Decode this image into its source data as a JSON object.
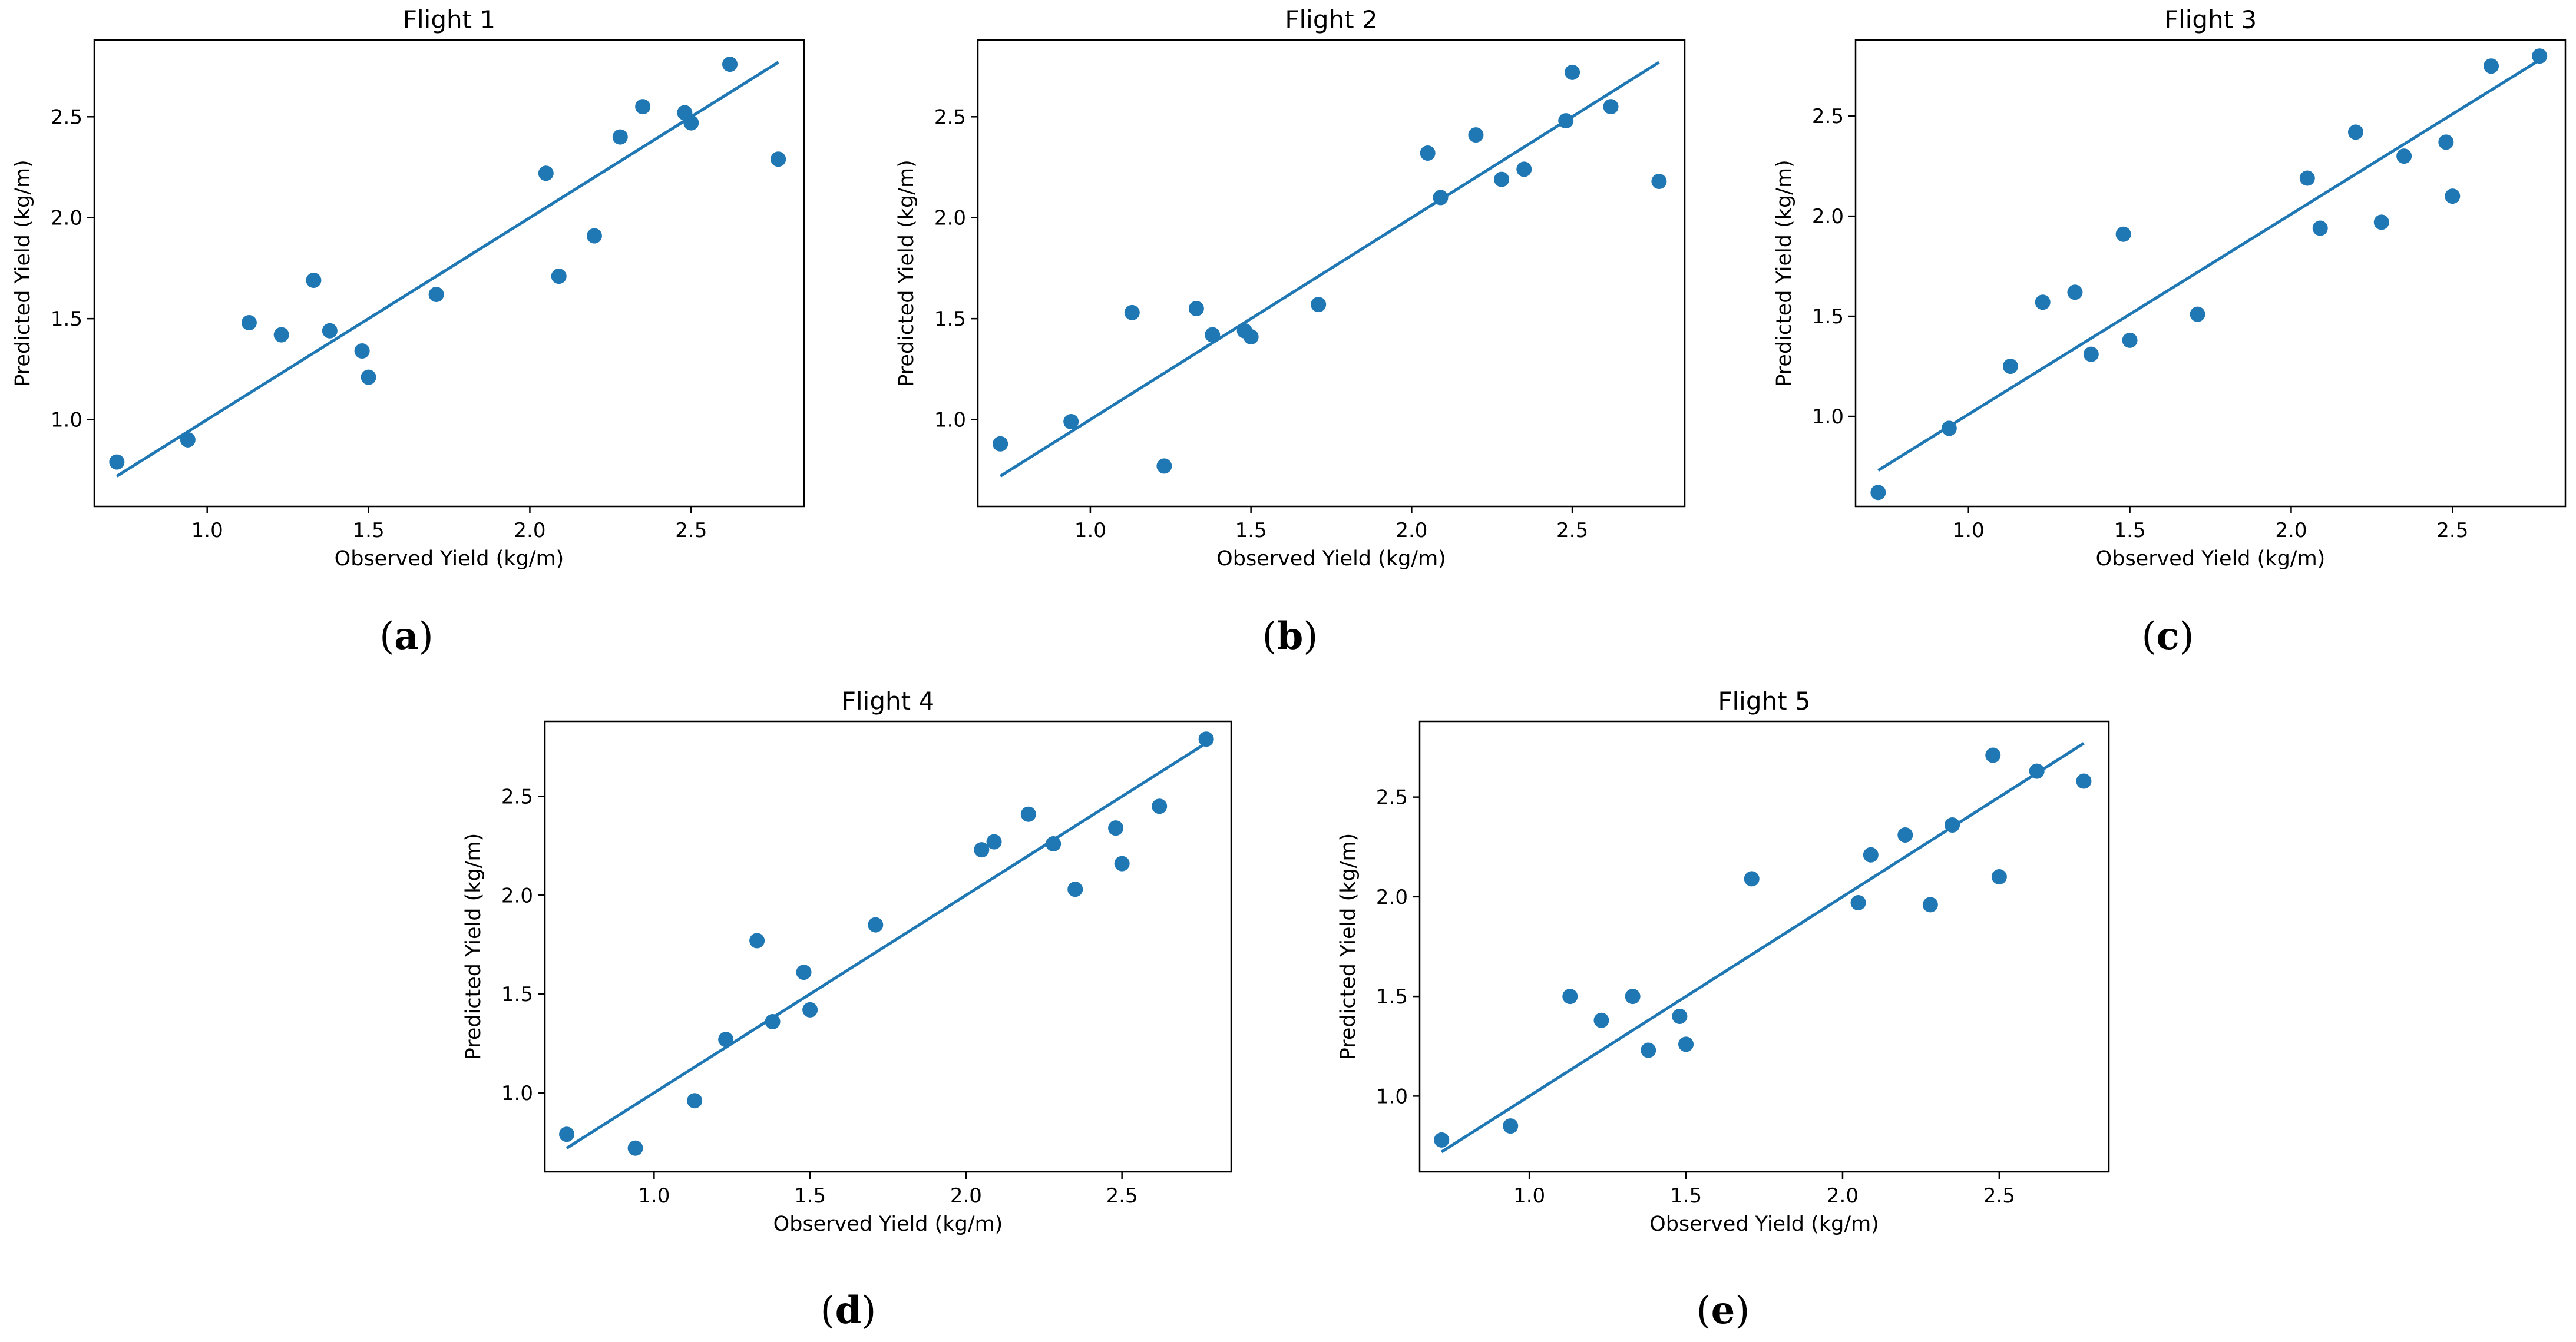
{
  "figure": {
    "colors": {
      "marker": "#1f77b4",
      "line": "#1f77b4",
      "axes": "#000000"
    }
  },
  "chart_data": [
    {
      "type": "scatter",
      "title": "Flight 1",
      "caption": "(a)",
      "caption_letter": "a",
      "xlabel": "Observed Yield (kg/m)",
      "ylabel": "Predicted Yield (kg/m)",
      "xlim": [
        0.65,
        2.85
      ],
      "ylim": [
        0.57,
        2.88
      ],
      "xticks": [
        1.0,
        1.5,
        2.0,
        2.5
      ],
      "xtick_labels": [
        "1.0",
        "1.5",
        "2.0",
        "2.5"
      ],
      "yticks": [
        1.0,
        1.5,
        2.0,
        2.5
      ],
      "ytick_labels": [
        "1.0",
        "1.5",
        "2.0",
        "2.5"
      ],
      "x": [
        0.72,
        0.94,
        1.13,
        1.23,
        1.33,
        1.38,
        1.48,
        1.5,
        1.71,
        2.05,
        2.09,
        2.2,
        2.28,
        2.35,
        2.48,
        2.5,
        2.62,
        2.77
      ],
      "y": [
        0.79,
        0.9,
        1.48,
        1.42,
        1.69,
        1.44,
        1.34,
        1.21,
        1.62,
        2.22,
        1.71,
        1.91,
        2.4,
        2.55,
        2.52,
        2.47,
        2.76,
        2.29
      ],
      "fit_line": {
        "x": [
          0.72,
          2.77
        ],
        "y": [
          0.72,
          2.77
        ]
      }
    },
    {
      "type": "scatter",
      "title": "Flight 2",
      "caption": "(b)",
      "caption_letter": "b",
      "xlabel": "Observed Yield (kg/m)",
      "ylabel": "Predicted Yield (kg/m)",
      "xlim": [
        0.65,
        2.85
      ],
      "ylim": [
        0.57,
        2.88
      ],
      "xticks": [
        1.0,
        1.5,
        2.0,
        2.5
      ],
      "xtick_labels": [
        "1.0",
        "1.5",
        "2.0",
        "2.5"
      ],
      "yticks": [
        1.0,
        1.5,
        2.0,
        2.5
      ],
      "ytick_labels": [
        "1.0",
        "1.5",
        "2.0",
        "2.5"
      ],
      "x": [
        0.72,
        0.94,
        1.13,
        1.23,
        1.33,
        1.38,
        1.48,
        1.5,
        1.71,
        2.05,
        2.09,
        2.2,
        2.28,
        2.35,
        2.48,
        2.5,
        2.62,
        2.77
      ],
      "y": [
        0.88,
        0.99,
        1.53,
        0.77,
        1.55,
        1.42,
        1.44,
        1.41,
        1.57,
        2.32,
        2.1,
        2.41,
        2.19,
        2.24,
        2.48,
        2.72,
        2.55,
        2.18
      ],
      "fit_line": {
        "x": [
          0.72,
          2.77
        ],
        "y": [
          0.72,
          2.77
        ]
      }
    },
    {
      "type": "scatter",
      "title": "Flight 3",
      "caption": "(c)",
      "caption_letter": "c",
      "xlabel": "Observed Yield (kg/m)",
      "ylabel": "Predicted Yield (kg/m)",
      "xlim": [
        0.65,
        2.85
      ],
      "ylim": [
        0.55,
        2.88
      ],
      "xticks": [
        1.0,
        1.5,
        2.0,
        2.5
      ],
      "xtick_labels": [
        "1.0",
        "1.5",
        "2.0",
        "2.5"
      ],
      "yticks": [
        1.0,
        1.5,
        2.0,
        2.5
      ],
      "ytick_labels": [
        "1.0",
        "1.5",
        "2.0",
        "2.5"
      ],
      "x": [
        0.72,
        0.94,
        1.13,
        1.23,
        1.33,
        1.38,
        1.48,
        1.5,
        1.71,
        2.05,
        2.09,
        2.2,
        2.28,
        2.35,
        2.48,
        2.5,
        2.62,
        2.77
      ],
      "y": [
        0.62,
        0.94,
        1.25,
        1.57,
        1.62,
        1.31,
        1.91,
        1.38,
        1.51,
        2.19,
        1.94,
        2.42,
        1.97,
        2.3,
        2.37,
        2.1,
        2.75,
        2.8
      ],
      "fit_line": {
        "x": [
          0.72,
          2.77
        ],
        "y": [
          0.73,
          2.78
        ]
      }
    },
    {
      "type": "scatter",
      "title": "Flight 4",
      "caption": "(d)",
      "caption_letter": "d",
      "xlabel": "Observed Yield (kg/m)",
      "ylabel": "Predicted Yield (kg/m)",
      "xlim": [
        0.65,
        2.85
      ],
      "ylim": [
        0.6,
        2.88
      ],
      "xticks": [
        1.0,
        1.5,
        2.0,
        2.5
      ],
      "xtick_labels": [
        "1.0",
        "1.5",
        "2.0",
        "2.5"
      ],
      "yticks": [
        1.0,
        1.5,
        2.0,
        2.5
      ],
      "ytick_labels": [
        "1.0",
        "1.5",
        "2.0",
        "2.5"
      ],
      "x": [
        0.72,
        0.94,
        1.13,
        1.23,
        1.33,
        1.38,
        1.48,
        1.5,
        1.71,
        2.05,
        2.09,
        2.2,
        2.28,
        2.35,
        2.48,
        2.5,
        2.62,
        2.77
      ],
      "y": [
        0.79,
        0.72,
        0.96,
        1.27,
        1.77,
        1.36,
        1.61,
        1.42,
        1.85,
        2.23,
        2.27,
        2.41,
        2.26,
        2.03,
        2.34,
        2.16,
        2.45,
        2.79
      ],
      "fit_line": {
        "x": [
          0.72,
          2.77
        ],
        "y": [
          0.72,
          2.77
        ]
      }
    },
    {
      "type": "scatter",
      "title": "Flight 5",
      "caption": "(e)",
      "caption_letter": "e",
      "xlabel": "Observed Yield (kg/m)",
      "ylabel": "Predicted Yield (kg/m)",
      "xlim": [
        0.65,
        2.85
      ],
      "ylim": [
        0.62,
        2.88
      ],
      "xticks": [
        1.0,
        1.5,
        2.0,
        2.5
      ],
      "xtick_labels": [
        "1.0",
        "1.5",
        "2.0",
        "2.5"
      ],
      "yticks": [
        1.0,
        1.5,
        2.0,
        2.5
      ],
      "ytick_labels": [
        "1.0",
        "1.5",
        "2.0",
        "2.5"
      ],
      "x": [
        0.72,
        0.94,
        1.13,
        1.23,
        1.33,
        1.38,
        1.48,
        1.5,
        1.71,
        2.05,
        2.09,
        2.2,
        2.28,
        2.35,
        2.48,
        2.5,
        2.62,
        2.77
      ],
      "y": [
        0.78,
        0.85,
        1.5,
        1.38,
        1.5,
        1.23,
        1.4,
        1.26,
        2.09,
        1.97,
        2.21,
        2.31,
        1.96,
        2.36,
        2.71,
        2.1,
        2.63,
        2.58
      ],
      "fit_line": {
        "x": [
          0.72,
          2.77
        ],
        "y": [
          0.72,
          2.77
        ]
      }
    }
  ]
}
